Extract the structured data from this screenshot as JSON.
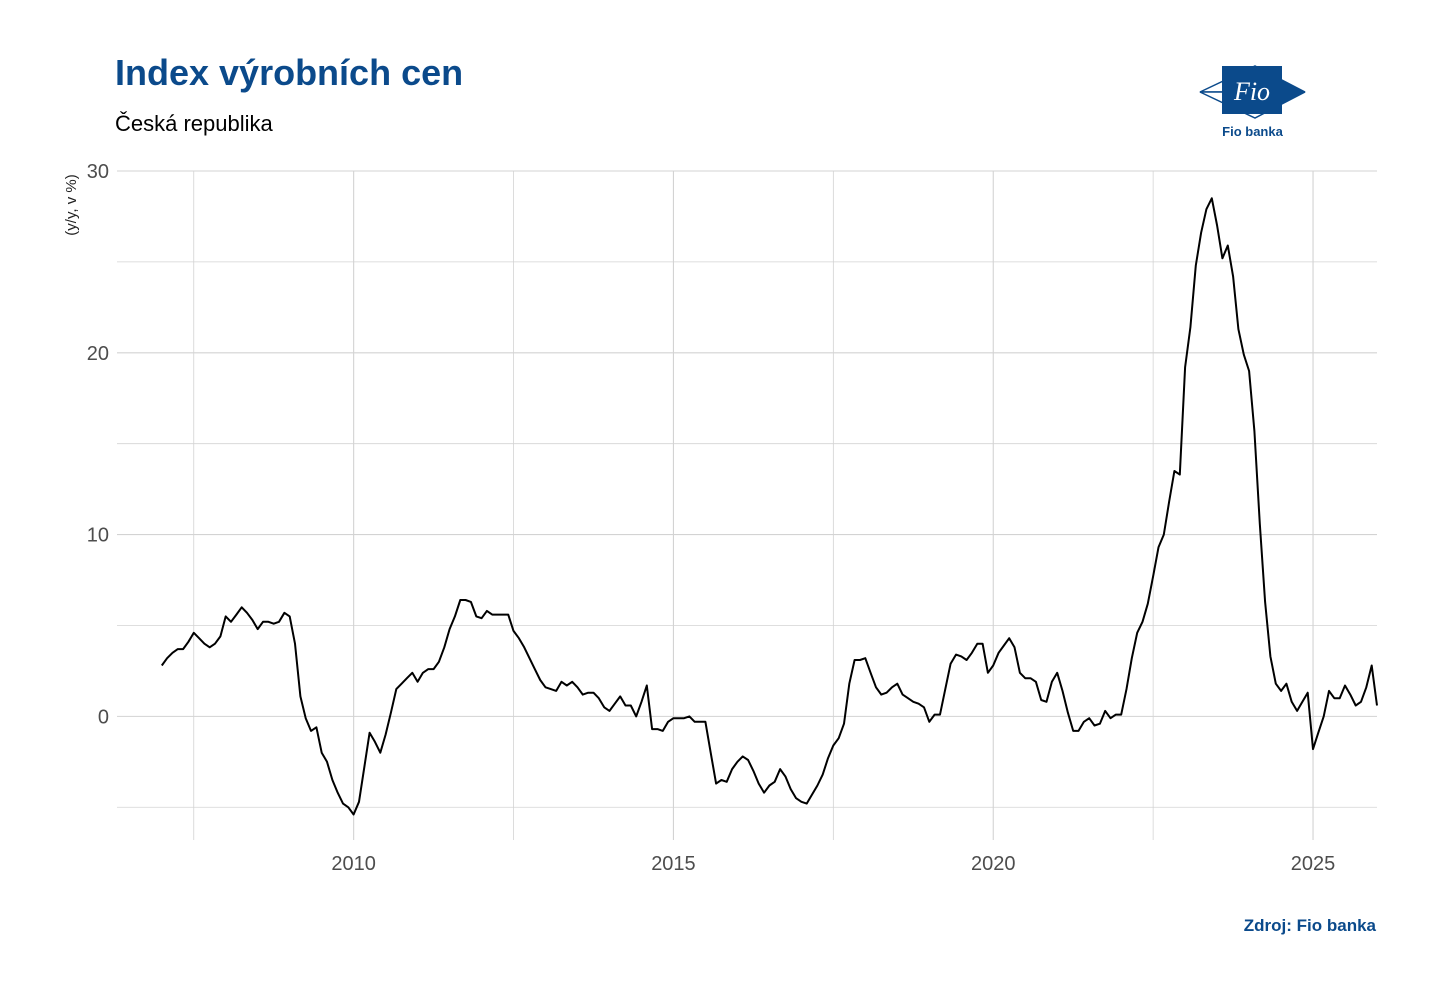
{
  "header": {
    "title": "Index výrobních cen",
    "subtitle": "Česká republika"
  },
  "logo": {
    "mark_text": "Fio",
    "caption": "Fio banka",
    "icon": "fio-flag-logo"
  },
  "source": "Zdroj: Fio banka",
  "colors": {
    "brand": "#0b4a8b",
    "line": "#000000",
    "grid": "#d3d3d3"
  },
  "chart_data": {
    "type": "line",
    "title": "Index výrobních cen",
    "subtitle": "Česká republika",
    "xlabel": "",
    "ylabel": "(y/y, v %)",
    "xlim": [
      2006.3,
      2026.0
    ],
    "ylim": [
      -6.8,
      30.0
    ],
    "x_ticks": [
      2010,
      2015,
      2020,
      2025
    ],
    "y_ticks": [
      0,
      10,
      20,
      30
    ],
    "grid": true,
    "legend": "none",
    "series": [
      {
        "points": [
          [
            2007.0,
            2.8
          ],
          [
            2007.083,
            3.2
          ],
          [
            2007.167,
            3.5
          ],
          [
            2007.25,
            3.7
          ],
          [
            2007.333,
            3.7
          ],
          [
            2007.417,
            4.1
          ],
          [
            2007.5,
            4.6
          ],
          [
            2007.583,
            4.3
          ],
          [
            2007.667,
            4.0
          ],
          [
            2007.75,
            3.8
          ],
          [
            2007.833,
            4.0
          ],
          [
            2007.917,
            4.4
          ],
          [
            2008.0,
            5.5
          ],
          [
            2008.083,
            5.2
          ],
          [
            2008.167,
            5.6
          ],
          [
            2008.25,
            6.0
          ],
          [
            2008.333,
            5.7
          ],
          [
            2008.417,
            5.3
          ],
          [
            2008.5,
            4.8
          ],
          [
            2008.583,
            5.2
          ],
          [
            2008.667,
            5.2
          ],
          [
            2008.75,
            5.1
          ],
          [
            2008.833,
            5.2
          ],
          [
            2008.917,
            5.7
          ],
          [
            2009.0,
            5.5
          ],
          [
            2009.083,
            4.0
          ],
          [
            2009.167,
            1.1
          ],
          [
            2009.25,
            -0.1
          ],
          [
            2009.333,
            -0.8
          ],
          [
            2009.417,
            -0.6
          ],
          [
            2009.5,
            -2.0
          ],
          [
            2009.583,
            -2.5
          ],
          [
            2009.667,
            -3.5
          ],
          [
            2009.75,
            -4.2
          ],
          [
            2009.833,
            -4.8
          ],
          [
            2009.917,
            -5.0
          ],
          [
            2010.0,
            -5.4
          ],
          [
            2010.083,
            -4.7
          ],
          [
            2010.167,
            -2.8
          ],
          [
            2010.25,
            -0.9
          ],
          [
            2010.333,
            -1.4
          ],
          [
            2010.417,
            -2.0
          ],
          [
            2010.5,
            -1.0
          ],
          [
            2010.583,
            0.2
          ],
          [
            2010.667,
            1.5
          ],
          [
            2010.75,
            1.8
          ],
          [
            2010.833,
            2.1
          ],
          [
            2010.917,
            2.4
          ],
          [
            2011.0,
            1.9
          ],
          [
            2011.083,
            2.4
          ],
          [
            2011.167,
            2.6
          ],
          [
            2011.25,
            2.6
          ],
          [
            2011.333,
            3.0
          ],
          [
            2011.417,
            3.8
          ],
          [
            2011.5,
            4.8
          ],
          [
            2011.583,
            5.5
          ],
          [
            2011.667,
            6.4
          ],
          [
            2011.75,
            6.4
          ],
          [
            2011.833,
            6.3
          ],
          [
            2011.917,
            5.5
          ],
          [
            2012.0,
            5.4
          ],
          [
            2012.083,
            5.8
          ],
          [
            2012.167,
            5.6
          ],
          [
            2012.25,
            5.6
          ],
          [
            2012.333,
            5.6
          ],
          [
            2012.417,
            5.6
          ],
          [
            2012.5,
            4.7
          ],
          [
            2012.583,
            4.3
          ],
          [
            2012.667,
            3.8
          ],
          [
            2012.75,
            3.2
          ],
          [
            2012.833,
            2.6
          ],
          [
            2012.917,
            2.0
          ],
          [
            2013.0,
            1.6
          ],
          [
            2013.083,
            1.5
          ],
          [
            2013.167,
            1.4
          ],
          [
            2013.25,
            1.9
          ],
          [
            2013.333,
            1.7
          ],
          [
            2013.417,
            1.9
          ],
          [
            2013.5,
            1.6
          ],
          [
            2013.583,
            1.2
          ],
          [
            2013.667,
            1.3
          ],
          [
            2013.75,
            1.3
          ],
          [
            2013.833,
            1.0
          ],
          [
            2013.917,
            0.5
          ],
          [
            2014.0,
            0.3
          ],
          [
            2014.083,
            0.7
          ],
          [
            2014.167,
            1.1
          ],
          [
            2014.25,
            0.6
          ],
          [
            2014.333,
            0.6
          ],
          [
            2014.417,
            0.0
          ],
          [
            2014.5,
            0.8
          ],
          [
            2014.583,
            1.7
          ],
          [
            2014.667,
            -0.7
          ],
          [
            2014.75,
            -0.7
          ],
          [
            2014.833,
            -0.8
          ],
          [
            2014.917,
            -0.3
          ],
          [
            2015.0,
            -0.1
          ],
          [
            2015.083,
            -0.1
          ],
          [
            2015.167,
            -0.1
          ],
          [
            2015.25,
            0.0
          ],
          [
            2015.333,
            -0.3
          ],
          [
            2015.417,
            -0.3
          ],
          [
            2015.5,
            -0.3
          ],
          [
            2015.583,
            -2.0
          ],
          [
            2015.667,
            -3.7
          ],
          [
            2015.75,
            -3.5
          ],
          [
            2015.833,
            -3.6
          ],
          [
            2015.917,
            -2.9
          ],
          [
            2016.0,
            -2.5
          ],
          [
            2016.083,
            -2.2
          ],
          [
            2016.167,
            -2.4
          ],
          [
            2016.25,
            -3.0
          ],
          [
            2016.333,
            -3.7
          ],
          [
            2016.417,
            -4.2
          ],
          [
            2016.5,
            -3.8
          ],
          [
            2016.583,
            -3.6
          ],
          [
            2016.667,
            -2.9
          ],
          [
            2016.75,
            -3.3
          ],
          [
            2016.833,
            -4.0
          ],
          [
            2016.917,
            -4.5
          ],
          [
            2017.0,
            -4.7
          ],
          [
            2017.083,
            -4.8
          ],
          [
            2017.167,
            -4.3
          ],
          [
            2017.25,
            -3.8
          ],
          [
            2017.333,
            -3.2
          ],
          [
            2017.417,
            -2.3
          ],
          [
            2017.5,
            -1.6
          ],
          [
            2017.583,
            -1.2
          ],
          [
            2017.667,
            -0.4
          ],
          [
            2017.75,
            1.8
          ],
          [
            2017.833,
            3.1
          ],
          [
            2017.917,
            3.1
          ],
          [
            2018.0,
            3.2
          ],
          [
            2018.083,
            2.4
          ],
          [
            2018.167,
            1.6
          ],
          [
            2018.25,
            1.2
          ],
          [
            2018.333,
            1.3
          ],
          [
            2018.417,
            1.6
          ],
          [
            2018.5,
            1.8
          ],
          [
            2018.583,
            1.2
          ],
          [
            2018.667,
            1.0
          ],
          [
            2018.75,
            0.8
          ],
          [
            2018.833,
            0.7
          ],
          [
            2018.917,
            0.5
          ],
          [
            2019.0,
            -0.3
          ],
          [
            2019.083,
            0.1
          ],
          [
            2019.167,
            0.1
          ],
          [
            2019.25,
            1.5
          ],
          [
            2019.333,
            2.9
          ],
          [
            2019.417,
            3.4
          ],
          [
            2019.5,
            3.3
          ],
          [
            2019.583,
            3.1
          ],
          [
            2019.667,
            3.5
          ],
          [
            2019.75,
            4.0
          ],
          [
            2019.833,
            4.0
          ],
          [
            2019.917,
            2.4
          ],
          [
            2020.0,
            2.8
          ],
          [
            2020.083,
            3.5
          ],
          [
            2020.167,
            3.9
          ],
          [
            2020.25,
            4.3
          ],
          [
            2020.333,
            3.8
          ],
          [
            2020.417,
            2.4
          ],
          [
            2020.5,
            2.1
          ],
          [
            2020.583,
            2.1
          ],
          [
            2020.667,
            1.9
          ],
          [
            2020.75,
            0.9
          ],
          [
            2020.833,
            0.8
          ],
          [
            2020.917,
            1.9
          ],
          [
            2021.0,
            2.4
          ],
          [
            2021.083,
            1.4
          ],
          [
            2021.167,
            0.2
          ],
          [
            2021.25,
            -0.8
          ],
          [
            2021.333,
            -0.8
          ],
          [
            2021.417,
            -0.3
          ],
          [
            2021.5,
            -0.1
          ],
          [
            2021.583,
            -0.5
          ],
          [
            2021.667,
            -0.4
          ],
          [
            2021.75,
            0.3
          ],
          [
            2021.833,
            -0.1
          ],
          [
            2021.917,
            0.1
          ],
          [
            2022.0,
            0.1
          ],
          [
            2022.083,
            1.5
          ],
          [
            2022.167,
            3.2
          ],
          [
            2022.25,
            4.6
          ],
          [
            2022.333,
            5.2
          ],
          [
            2022.417,
            6.2
          ],
          [
            2022.5,
            7.7
          ],
          [
            2022.583,
            9.3
          ],
          [
            2022.667,
            10.0
          ],
          [
            2022.75,
            11.8
          ],
          [
            2022.833,
            13.5
          ],
          [
            2022.917,
            13.3
          ],
          [
            2023.0,
            19.2
          ],
          [
            2023.083,
            21.4
          ],
          [
            2023.167,
            24.8
          ],
          [
            2023.25,
            26.6
          ],
          [
            2023.333,
            27.9
          ],
          [
            2023.417,
            28.5
          ],
          [
            2023.5,
            27.0
          ],
          [
            2023.583,
            25.2
          ],
          [
            2023.667,
            25.9
          ],
          [
            2023.75,
            24.2
          ],
          [
            2023.833,
            21.3
          ],
          [
            2023.917,
            19.9
          ],
          [
            2024.0,
            19.0
          ],
          [
            2024.083,
            15.7
          ],
          [
            2024.167,
            10.6
          ],
          [
            2024.25,
            6.3
          ],
          [
            2024.333,
            3.3
          ],
          [
            2024.417,
            1.8
          ],
          [
            2024.5,
            1.4
          ],
          [
            2024.583,
            1.8
          ],
          [
            2024.667,
            0.8
          ],
          [
            2024.75,
            0.3
          ],
          [
            2024.833,
            0.8
          ],
          [
            2024.917,
            1.3
          ],
          [
            2025.0,
            -1.8
          ],
          [
            2025.083,
            -0.9
          ],
          [
            2025.167,
            0.0
          ],
          [
            2025.25,
            1.4
          ],
          [
            2025.333,
            1.0
          ],
          [
            2025.417,
            1.0
          ],
          [
            2025.5,
            1.7
          ],
          [
            2025.583,
            1.2
          ],
          [
            2025.667,
            0.6
          ],
          [
            2025.75,
            0.8
          ],
          [
            2025.833,
            1.6
          ],
          [
            2025.917,
            2.8
          ],
          [
            2026.0,
            0.6
          ]
        ]
      }
    ]
  }
}
